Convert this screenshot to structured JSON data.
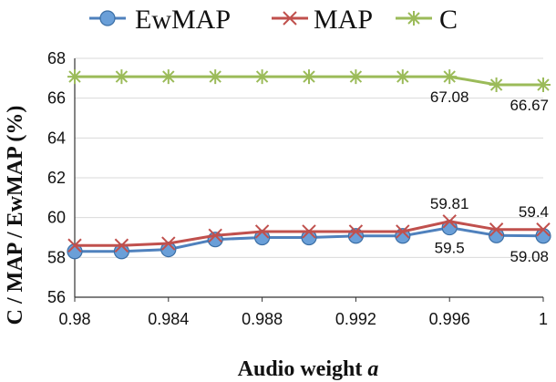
{
  "chart_data": {
    "type": "line",
    "xlabel": "Audio weight",
    "xlabel_var": "a",
    "ylabel": "C / MAP / EwMAP (%)",
    "xlim": [
      0.98,
      1.0
    ],
    "ylim": [
      56,
      68
    ],
    "x_ticks": [
      "0.98",
      "0.984",
      "0.988",
      "0.992",
      "0.996",
      "1"
    ],
    "x_tick_values": [
      0.98,
      0.984,
      0.988,
      0.992,
      0.996,
      1.0
    ],
    "y_ticks": [
      "56",
      "58",
      "60",
      "62",
      "64",
      "66",
      "68"
    ],
    "y_tick_values": [
      56,
      58,
      60,
      62,
      64,
      66,
      68
    ],
    "grid": "horizontal",
    "legend_position": "top",
    "x": [
      0.98,
      0.982,
      0.984,
      0.986,
      0.988,
      0.99,
      0.992,
      0.994,
      0.996,
      0.998,
      1.0
    ],
    "series": [
      {
        "name": "EwMAP",
        "marker": "circle",
        "color": "#4f81bd",
        "values": [
          58.3,
          58.3,
          58.4,
          58.9,
          59.0,
          59.0,
          59.08,
          59.08,
          59.5,
          59.1,
          59.08
        ]
      },
      {
        "name": "MAP",
        "marker": "x",
        "color": "#c0504d",
        "values": [
          58.6,
          58.6,
          58.7,
          59.1,
          59.3,
          59.3,
          59.3,
          59.3,
          59.81,
          59.4,
          59.4
        ]
      },
      {
        "name": "C",
        "marker": "star",
        "color": "#9bbb59",
        "values": [
          67.08,
          67.08,
          67.08,
          67.08,
          67.08,
          67.08,
          67.08,
          67.08,
          67.08,
          66.67,
          66.67
        ]
      }
    ],
    "annotations": [
      {
        "text": "67.08",
        "series": "C",
        "x": 0.996,
        "y": 67.08,
        "where": "below"
      },
      {
        "text": "66.67",
        "series": "C",
        "x": 1.0,
        "y": 66.67,
        "where": "below"
      },
      {
        "text": "59.81",
        "series": "MAP",
        "x": 0.996,
        "y": 59.81,
        "where": "above"
      },
      {
        "text": "59.4",
        "series": "MAP",
        "x": 1.0,
        "y": 59.4,
        "where": "above"
      },
      {
        "text": "59.5",
        "series": "EwMAP",
        "x": 0.996,
        "y": 59.5,
        "where": "below"
      },
      {
        "text": "59.08",
        "series": "EwMAP",
        "x": 1.0,
        "y": 59.08,
        "where": "below"
      }
    ]
  }
}
